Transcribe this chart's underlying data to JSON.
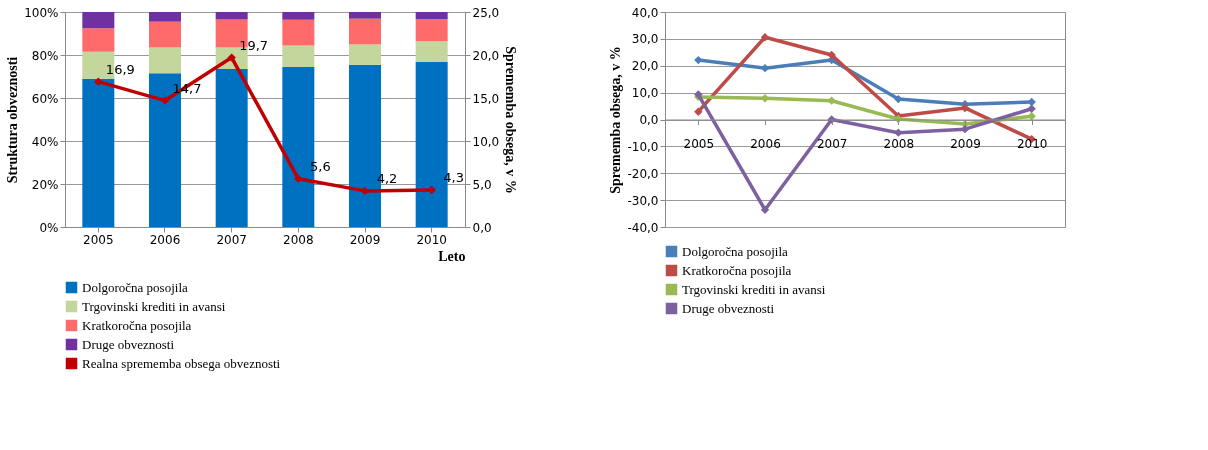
{
  "chart_data": [
    {
      "type": "bar",
      "stacked": true,
      "categories": [
        "2005",
        "2006",
        "2007",
        "2008",
        "2009",
        "2010"
      ],
      "xlabel": "Leto",
      "ylabel": "Struktura obveznosti",
      "y2label": "Sprememba obsega, v %",
      "ylim": [
        0,
        100
      ],
      "yticks": [
        {
          "value": 0,
          "label": "0%"
        },
        {
          "value": 20,
          "label": "20%"
        },
        {
          "value": 40,
          "label": "40%"
        },
        {
          "value": 60,
          "label": "60%"
        },
        {
          "value": 80,
          "label": "80%"
        },
        {
          "value": 100,
          "label": "100%"
        }
      ],
      "y2lim": [
        0,
        25
      ],
      "y2ticks": [
        {
          "value": 0,
          "label": "0,0"
        },
        {
          "value": 5,
          "label": "5,0"
        },
        {
          "value": 10,
          "label": "10,0"
        },
        {
          "value": 15,
          "label": "15,0"
        },
        {
          "value": 20,
          "label": "20,0"
        },
        {
          "value": 25,
          "label": "25,0"
        }
      ],
      "grid": "y",
      "legend": "bottom",
      "series": [
        {
          "name": "Dolgoročna posojila",
          "color": "#0070c0",
          "values": [
            69,
            71.5,
            73.5,
            74.4,
            75.4,
            76.9
          ]
        },
        {
          "name": "Trgovinski krediti in avansi",
          "color": "#c3d69b",
          "values": [
            12.5,
            12,
            10,
            10,
            9.5,
            9.5
          ]
        },
        {
          "name": "Kratkoročna posojila",
          "color": "#ff6b6b",
          "values": [
            11,
            12,
            13,
            12,
            12,
            10.4
          ]
        },
        {
          "name": "Druge obveznosti",
          "color": "#7030a0",
          "values": [
            7.5,
            4.5,
            3.5,
            3.6,
            3.1,
            3.2
          ]
        },
        {
          "name": "Realna sprememba obsega obveznosti",
          "type": "line",
          "axis": "y2",
          "color": "#c00000",
          "marker": "diamond",
          "values": [
            16.9,
            14.7,
            19.7,
            5.6,
            4.2,
            4.3
          ],
          "value_labels": [
            "16,9",
            "14,7",
            "19,7",
            "5,6",
            "4,2",
            "4,3"
          ]
        }
      ]
    },
    {
      "type": "line",
      "categories": [
        "2005",
        "2006",
        "2007",
        "2008",
        "2009",
        "2010"
      ],
      "ylabel": "Sprememba obsega, v %",
      "marker": "diamond",
      "grid": "y",
      "legend": "bottom",
      "ylim": [
        -40,
        40
      ],
      "yticks": [
        {
          "value": -40,
          "label": "-40,0"
        },
        {
          "value": -30,
          "label": "-30,0"
        },
        {
          "value": -20,
          "label": "-20,0"
        },
        {
          "value": -10,
          "label": "-10,0"
        },
        {
          "value": 0,
          "label": "0,0"
        },
        {
          "value": 10,
          "label": "10,0"
        },
        {
          "value": 20,
          "label": "20,0"
        },
        {
          "value": 30,
          "label": "30,0"
        },
        {
          "value": 40,
          "label": "40,0"
        }
      ],
      "series": [
        {
          "name": "Dolgoročna posojila",
          "color": "#4a7ebb",
          "values": [
            22.1,
            19.1,
            22.1,
            7.6,
            5.7,
            6.5
          ]
        },
        {
          "name": "Kratkoročna posojila",
          "color": "#be4b48",
          "values": [
            2.9,
            30.6,
            24,
            1.3,
            4.3,
            -7.3
          ]
        },
        {
          "name": "Trgovinski krediti in avansi",
          "color": "#98b954",
          "values": [
            8.4,
            7.9,
            7,
            0.2,
            -1.7,
            1.2
          ]
        },
        {
          "name": "Druge obveznosti",
          "color": "#7d60a0",
          "values": [
            9.3,
            -33.6,
            0,
            -4.9,
            -3.6,
            4
          ]
        }
      ]
    }
  ]
}
